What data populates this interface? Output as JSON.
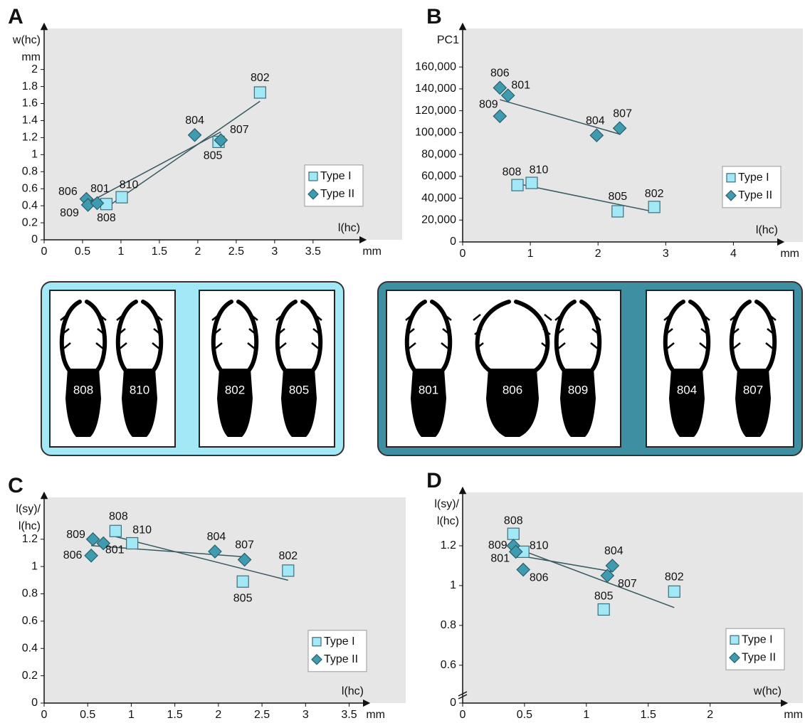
{
  "chart_data": [
    {
      "type": "scatter",
      "label": "A",
      "ylabel": [
        "w(hc)",
        "mm"
      ],
      "xlabel": "l(hc)",
      "xunit": "mm",
      "xlim": [
        0,
        4.15
      ],
      "ylim": [
        0,
        2.44
      ],
      "xticks": [
        0,
        0.5,
        1,
        1.5,
        2,
        2.5,
        3,
        3.5
      ],
      "yticks": [
        0,
        0.2,
        0.4,
        0.6,
        0.8,
        1,
        1.2,
        1.4,
        1.6,
        1.8,
        2
      ],
      "trendline": true,
      "legend": "right",
      "series": [
        {
          "name": "Type I",
          "marker": "square",
          "color": "#a3e8f7",
          "labels": [
            "808",
            "810",
            "805",
            "802"
          ],
          "x": [
            0.81,
            1.01,
            2.27,
            2.81
          ],
          "values": [
            0.42,
            0.5,
            1.15,
            1.73
          ]
        },
        {
          "name": "Type II",
          "marker": "diamond",
          "color": "#3f9bb0",
          "labels": [
            "806",
            "809",
            "801",
            "804",
            "807"
          ],
          "x": [
            0.55,
            0.57,
            0.69,
            1.96,
            2.3
          ],
          "values": [
            0.48,
            0.41,
            0.43,
            1.23,
            1.17
          ]
        }
      ]
    },
    {
      "type": "scatter",
      "label": "B",
      "ylabel": [
        "PC1"
      ],
      "xlabel": "l(hc)",
      "xunit": "mm",
      "xlim": [
        0,
        4.7
      ],
      "ylim": [
        0,
        192000
      ],
      "xticks": [
        0,
        1,
        2,
        3,
        4
      ],
      "yticks": [
        0,
        {
          "value": 20000,
          "label": "20,000"
        },
        {
          "value": 40000,
          "label": "40,000"
        },
        {
          "value": 60000,
          "label": "60,000"
        },
        {
          "value": 80000,
          "label": "80,000"
        },
        {
          "value": 100000,
          "label": "100,000"
        },
        {
          "value": 120000,
          "label": "120,000"
        },
        {
          "value": 140000,
          "label": "140,000"
        },
        {
          "value": 160000,
          "label": "160,000"
        }
      ],
      "trendline": true,
      "legend": "right",
      "series": [
        {
          "name": "Type I",
          "marker": "square",
          "color": "#a3e8f7",
          "labels": [
            "808",
            "810",
            "805",
            "802"
          ],
          "x": [
            0.81,
            1.02,
            2.29,
            2.83
          ],
          "values": [
            52000,
            54000,
            28000,
            32000
          ]
        },
        {
          "name": "Type II",
          "marker": "diamond",
          "color": "#3f9bb0",
          "labels": [
            "806",
            "809",
            "801",
            "804",
            "807"
          ],
          "x": [
            0.55,
            0.55,
            0.67,
            1.98,
            2.32
          ],
          "values": [
            141000,
            115000,
            134000,
            97500,
            104000
          ]
        }
      ]
    },
    {
      "type": "scatter",
      "label": "C",
      "ylabel": [
        "l(sy)/",
        "l(hc)"
      ],
      "xlabel": "l(hc)",
      "xunit": "mm",
      "xlim": [
        0,
        3.7
      ],
      "ylim": [
        0,
        1.48
      ],
      "xticks": [
        0,
        0.5,
        1,
        1.5,
        2,
        2.5,
        3,
        3.5
      ],
      "yticks": [
        0,
        0.2,
        0.4,
        0.6,
        0.8,
        1,
        1.2
      ],
      "trendline": true,
      "legend": "right",
      "series": [
        {
          "name": "Type I",
          "marker": "square",
          "color": "#a3e8f7",
          "labels": [
            "808",
            "810",
            "805",
            "802"
          ],
          "x": [
            0.82,
            1.01,
            2.28,
            2.8
          ],
          "values": [
            1.26,
            1.17,
            0.89,
            0.97
          ]
        },
        {
          "name": "Type II",
          "marker": "diamond",
          "color": "#3f9bb0",
          "labels": [
            "806",
            "809",
            "801",
            "804",
            "807"
          ],
          "x": [
            0.54,
            0.56,
            0.68,
            1.96,
            2.3
          ],
          "values": [
            1.08,
            1.2,
            1.17,
            1.11,
            1.05
          ]
        }
      ]
    },
    {
      "type": "scatter",
      "label": "D",
      "ylabel": [
        "l(sy)/",
        "l(hc)"
      ],
      "xlabel": "w(hc)",
      "xunit": "mm",
      "xlim": [
        0,
        2.6
      ],
      "ylim": [
        0.41,
        1.45
      ],
      "y_axis_break": true,
      "xticks": [
        0,
        0.5,
        1,
        1.5,
        2
      ],
      "yticks": [
        0,
        0.6,
        0.8,
        1,
        1.2
      ],
      "trendline": true,
      "legend": "right",
      "series": [
        {
          "name": "Type I",
          "marker": "square",
          "color": "#a3e8f7",
          "labels": [
            "808",
            "810",
            "805",
            "802"
          ],
          "x": [
            0.41,
            0.49,
            1.14,
            1.71
          ],
          "values": [
            1.26,
            1.17,
            0.88,
            0.97
          ]
        },
        {
          "name": "Type II",
          "marker": "diamond",
          "color": "#3f9bb0",
          "labels": [
            "806",
            "809",
            "801",
            "804",
            "807"
          ],
          "x": [
            0.49,
            0.41,
            0.43,
            1.21,
            1.17
          ],
          "values": [
            1.08,
            1.2,
            1.17,
            1.1,
            1.05
          ]
        }
      ]
    }
  ],
  "specimen_groups": [
    {
      "panels": [
        [
          "808",
          "810"
        ],
        [
          "802",
          "805"
        ]
      ]
    },
    {
      "panels": [
        [
          "801",
          "806",
          "809"
        ],
        [
          "804",
          "807"
        ]
      ]
    }
  ]
}
